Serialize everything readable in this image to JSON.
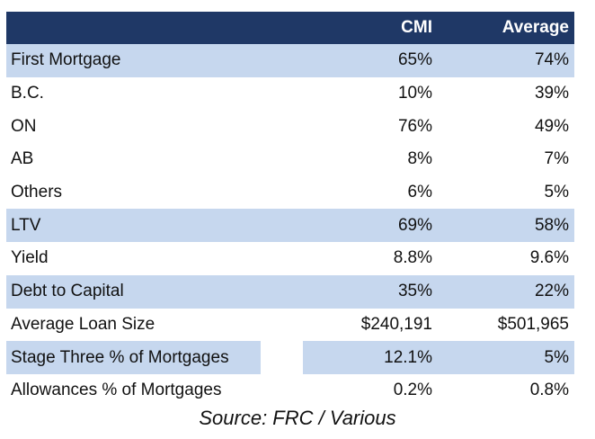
{
  "table": {
    "columns": [
      "",
      "CMI",
      "Average"
    ],
    "rows": [
      {
        "label": "First Mortgage",
        "cmi": "65%",
        "average": "74%",
        "shaded": true
      },
      {
        "label": "B.C.",
        "cmi": "10%",
        "average": "39%",
        "shaded": false
      },
      {
        "label": "ON",
        "cmi": "76%",
        "average": "49%",
        "shaded": false
      },
      {
        "label": "AB",
        "cmi": "8%",
        "average": "7%",
        "shaded": false
      },
      {
        "label": "Others",
        "cmi": "6%",
        "average": "5%",
        "shaded": false
      },
      {
        "label": "LTV",
        "cmi": "69%",
        "average": "58%",
        "shaded": true
      },
      {
        "label": "Yield",
        "cmi": "8.8%",
        "average": "9.6%",
        "shaded": false
      },
      {
        "label": "Debt to Capital",
        "cmi": "35%",
        "average": "22%",
        "shaded": true
      },
      {
        "label": "Average Loan Size",
        "cmi": "$240,191",
        "average": "$501,965",
        "shaded": false
      },
      {
        "label": "Stage Three % of Mortgages",
        "cmi": "12.1%",
        "average": "5%",
        "shaded": true
      },
      {
        "label": "Allowances % of Mortgages",
        "cmi": "0.2%",
        "average": "0.8%",
        "shaded": false
      }
    ]
  },
  "source": "Source: FRC / Various",
  "colors": {
    "header_bg": "#1f3866",
    "header_text": "#ffffff",
    "shaded_row": "#c6d7ee"
  }
}
